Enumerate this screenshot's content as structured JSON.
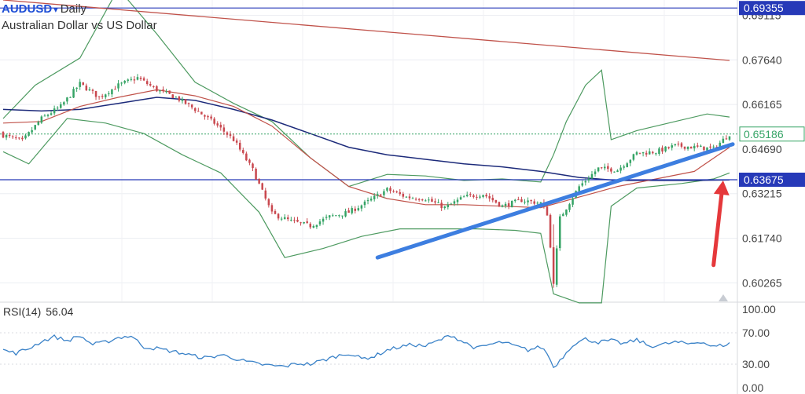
{
  "header": {
    "symbol": "AUDUSD",
    "caret": "▾",
    "interval": "Daily",
    "description": "Australian Dollar vs US Dollar"
  },
  "rsi": {
    "label": "RSI(14)",
    "value": "56.04"
  },
  "colors": {
    "up": "#36a466",
    "down": "#c9484f",
    "bollinger": "#4d9a60",
    "ma_red": "#c0524a",
    "ma_navy": "#1c2a7a",
    "trendline": "#3d7ee0",
    "arrow": "#e5383b",
    "hline": "#2639b8",
    "rsi_line": "#3a82c8"
  },
  "chart_data": {
    "type": "candlestick",
    "price_axis": {
      "ylim": [
        0.5965,
        0.6962
      ],
      "ticks": [
        "0.69115",
        "0.67640",
        "0.66165",
        "0.64690",
        "0.63215",
        "0.61740",
        "0.60265"
      ]
    },
    "price_labels": [
      {
        "text": "0.69355",
        "value": 0.69355,
        "style": "box"
      },
      {
        "text": "0.65186",
        "value": 0.65186,
        "style": "current"
      },
      {
        "text": "0.63675",
        "value": 0.63675,
        "style": "box"
      }
    ],
    "horizontal_lines": [
      0.69355,
      0.63675
    ],
    "current_price": 0.65186,
    "close_anchors": [
      [
        0,
        0.6515
      ],
      [
        6,
        0.6495
      ],
      [
        12,
        0.657
      ],
      [
        18,
        0.661
      ],
      [
        24,
        0.6685
      ],
      [
        30,
        0.664
      ],
      [
        36,
        0.668
      ],
      [
        42,
        0.6705
      ],
      [
        48,
        0.6665
      ],
      [
        54,
        0.664
      ],
      [
        60,
        0.66
      ],
      [
        66,
        0.6555
      ],
      [
        72,
        0.65
      ],
      [
        78,
        0.64
      ],
      [
        84,
        0.6255
      ],
      [
        90,
        0.623
      ],
      [
        96,
        0.6215
      ],
      [
        102,
        0.6245
      ],
      [
        108,
        0.626
      ],
      [
        114,
        0.6295
      ],
      [
        120,
        0.6335
      ],
      [
        126,
        0.631
      ],
      [
        132,
        0.6305
      ],
      [
        138,
        0.6275
      ],
      [
        144,
        0.631
      ],
      [
        150,
        0.632
      ],
      [
        156,
        0.628
      ],
      [
        162,
        0.63
      ],
      [
        168,
        0.629
      ],
      [
        170,
        0.6255
      ],
      [
        172,
        0.603
      ],
      [
        174,
        0.624
      ],
      [
        180,
        0.6345
      ],
      [
        186,
        0.6405
      ],
      [
        192,
        0.64
      ],
      [
        198,
        0.6455
      ],
      [
        204,
        0.646
      ],
      [
        210,
        0.648
      ],
      [
        216,
        0.6475
      ],
      [
        222,
        0.647
      ],
      [
        227,
        0.6519
      ]
    ],
    "bollinger_upper": [
      [
        0,
        0.657
      ],
      [
        10,
        0.668
      ],
      [
        24,
        0.677
      ],
      [
        36,
        0.7
      ],
      [
        48,
        0.685
      ],
      [
        60,
        0.669
      ],
      [
        72,
        0.662
      ],
      [
        84,
        0.656
      ],
      [
        96,
        0.644
      ],
      [
        108,
        0.6345
      ],
      [
        120,
        0.6385
      ],
      [
        132,
        0.638
      ],
      [
        144,
        0.6365
      ],
      [
        156,
        0.637
      ],
      [
        168,
        0.636
      ],
      [
        172,
        0.645
      ],
      [
        176,
        0.656
      ],
      [
        182,
        0.668
      ],
      [
        187,
        0.673
      ],
      [
        190,
        0.65
      ],
      [
        198,
        0.653
      ],
      [
        210,
        0.656
      ],
      [
        220,
        0.6585
      ],
      [
        227,
        0.6575
      ]
    ],
    "bollinger_lower": [
      [
        0,
        0.646
      ],
      [
        8,
        0.642
      ],
      [
        20,
        0.657
      ],
      [
        32,
        0.6555
      ],
      [
        44,
        0.652
      ],
      [
        56,
        0.645
      ],
      [
        68,
        0.639
      ],
      [
        80,
        0.626
      ],
      [
        88,
        0.611
      ],
      [
        100,
        0.614
      ],
      [
        112,
        0.618
      ],
      [
        124,
        0.6205
      ],
      [
        136,
        0.6205
      ],
      [
        148,
        0.6205
      ],
      [
        160,
        0.62
      ],
      [
        168,
        0.619
      ],
      [
        172,
        0.599
      ],
      [
        180,
        0.596
      ],
      [
        187,
        0.596
      ],
      [
        190,
        0.628
      ],
      [
        198,
        0.634
      ],
      [
        212,
        0.6355
      ],
      [
        222,
        0.637
      ],
      [
        227,
        0.639
      ]
    ],
    "ma_red": [
      [
        0,
        0.6555
      ],
      [
        12,
        0.656
      ],
      [
        24,
        0.661
      ],
      [
        36,
        0.664
      ],
      [
        48,
        0.6665
      ],
      [
        60,
        0.6645
      ],
      [
        72,
        0.661
      ],
      [
        84,
        0.6545
      ],
      [
        96,
        0.644
      ],
      [
        108,
        0.6345
      ],
      [
        120,
        0.6305
      ],
      [
        132,
        0.6285
      ],
      [
        144,
        0.6285
      ],
      [
        156,
        0.628
      ],
      [
        168,
        0.6275
      ],
      [
        180,
        0.631
      ],
      [
        192,
        0.6345
      ],
      [
        204,
        0.637
      ],
      [
        216,
        0.6395
      ],
      [
        227,
        0.6475
      ]
    ],
    "ma_navy": [
      [
        0,
        0.66
      ],
      [
        12,
        0.6595
      ],
      [
        24,
        0.66
      ],
      [
        36,
        0.662
      ],
      [
        48,
        0.664
      ],
      [
        60,
        0.663
      ],
      [
        72,
        0.66
      ],
      [
        84,
        0.6565
      ],
      [
        96,
        0.652
      ],
      [
        108,
        0.6475
      ],
      [
        120,
        0.645
      ],
      [
        132,
        0.6435
      ],
      [
        144,
        0.642
      ],
      [
        156,
        0.641
      ],
      [
        168,
        0.6395
      ],
      [
        180,
        0.6375
      ],
      [
        192,
        0.6365
      ],
      [
        204,
        0.6365
      ],
      [
        216,
        0.6365
      ],
      [
        227,
        0.6367
      ]
    ],
    "descending_trendline": [
      [
        0,
        0.6962
      ],
      [
        227,
        0.6762
      ]
    ],
    "ascending_trendline": [
      [
        117,
        0.611
      ],
      [
        228,
        0.6485
      ]
    ],
    "arrow": {
      "from": [
        222,
        0.6085
      ],
      "to": [
        225,
        0.6365
      ]
    },
    "rsi_axis": {
      "ylim": [
        0,
        100
      ],
      "ticks": [
        "100.00",
        "70.00",
        "30.00",
        "0.00"
      ]
    },
    "rsi_anchors": [
      [
        0,
        48
      ],
      [
        4,
        44
      ],
      [
        8,
        50
      ],
      [
        12,
        59
      ],
      [
        16,
        65
      ],
      [
        20,
        60
      ],
      [
        24,
        66
      ],
      [
        28,
        55
      ],
      [
        32,
        58
      ],
      [
        36,
        64
      ],
      [
        40,
        66
      ],
      [
        44,
        52
      ],
      [
        48,
        50
      ],
      [
        52,
        47
      ],
      [
        56,
        44
      ],
      [
        60,
        40
      ],
      [
        64,
        38
      ],
      [
        68,
        42
      ],
      [
        72,
        38
      ],
      [
        76,
        33
      ],
      [
        80,
        30
      ],
      [
        84,
        28
      ],
      [
        88,
        27
      ],
      [
        92,
        31
      ],
      [
        96,
        30
      ],
      [
        100,
        35
      ],
      [
        104,
        40
      ],
      [
        108,
        44
      ],
      [
        112,
        37
      ],
      [
        116,
        40
      ],
      [
        120,
        48
      ],
      [
        124,
        52
      ],
      [
        128,
        55
      ],
      [
        132,
        53
      ],
      [
        136,
        60
      ],
      [
        140,
        67
      ],
      [
        144,
        58
      ],
      [
        148,
        50
      ],
      [
        152,
        55
      ],
      [
        156,
        58
      ],
      [
        160,
        53
      ],
      [
        164,
        48
      ],
      [
        168,
        52
      ],
      [
        170,
        44
      ],
      [
        172,
        26
      ],
      [
        174,
        35
      ],
      [
        178,
        55
      ],
      [
        182,
        62
      ],
      [
        186,
        58
      ],
      [
        190,
        60
      ],
      [
        194,
        56
      ],
      [
        198,
        61
      ],
      [
        202,
        53
      ],
      [
        206,
        55
      ],
      [
        210,
        58
      ],
      [
        214,
        56
      ],
      [
        218,
        59
      ],
      [
        222,
        52
      ],
      [
        227,
        56
      ]
    ]
  }
}
